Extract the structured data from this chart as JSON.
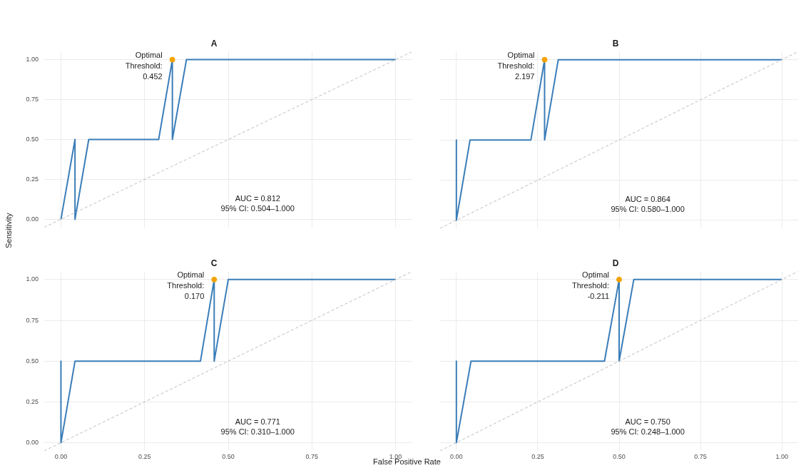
{
  "chart_data": [
    {
      "type": "line",
      "title": "A",
      "ylabel": "Sensitivity",
      "xlim": [
        -0.05,
        1.05
      ],
      "ylim": [
        -0.05,
        1.05
      ],
      "xticks": [
        0,
        0.25,
        0.5,
        0.75,
        1
      ],
      "yticks": [
        {
          "value": 0,
          "label": "0.00"
        },
        {
          "value": 0.25,
          "label": "0.25"
        },
        {
          "value": 0.5,
          "label": "0.50"
        },
        {
          "value": 0.75,
          "label": "0.75"
        },
        {
          "value": 1,
          "label": "1.00"
        }
      ],
      "grid": true,
      "tick_labels": "y",
      "series": [
        {
          "type": "line",
          "color": "#bdbdbd",
          "line_style": "dashed",
          "x": [
            -0.05,
            1.05
          ],
          "values": [
            -0.05,
            1.05
          ]
        },
        {
          "type": "line",
          "color": "#3a7db8",
          "x": [
            0,
            0.042,
            0.042,
            0.083,
            0.292,
            0.333,
            0.333,
            0.375,
            1
          ],
          "values": [
            0,
            0.5,
            0,
            0.5,
            0.5,
            1,
            0.5,
            1,
            1
          ]
        },
        {
          "type": "scatter",
          "color": "#f5a300",
          "marker": "circle",
          "x": [
            0.333
          ],
          "values": [
            1
          ]
        }
      ],
      "annotations": [
        {
          "text": "Optimal\nThreshold:\n0.452",
          "x": 0.333,
          "y": 1
        },
        "AUC = 0.812\n95% CI: 0.504–1.000"
      ]
    },
    {
      "type": "line",
      "title": "B",
      "xlim": [
        -0.05,
        1.05
      ],
      "ylim": [
        -0.05,
        1.05
      ],
      "xticks": [
        0,
        0.25,
        0.5,
        0.75,
        1
      ],
      "yticks": [
        0,
        0.25,
        0.5,
        0.75,
        1
      ],
      "grid": true,
      "tick_labels": false,
      "series": [
        {
          "type": "line",
          "color": "#bdbdbd",
          "line_style": "dashed",
          "x": [
            -0.05,
            1.05
          ],
          "values": [
            -0.05,
            1.05
          ]
        },
        {
          "type": "line",
          "color": "#3a7db8",
          "x": [
            0,
            0,
            0.042,
            0.229,
            0.271,
            0.271,
            0.313,
            1
          ],
          "values": [
            0.5,
            0,
            0.5,
            0.5,
            1,
            0.5,
            1,
            1
          ]
        },
        {
          "type": "scatter",
          "color": "#f5a300",
          "marker": "circle",
          "x": [
            0.271
          ],
          "values": [
            1
          ]
        }
      ],
      "annotations": [
        {
          "text": "Optimal\nThreshold:\n2.197",
          "x": 0.271,
          "y": 1
        },
        "AUC = 0.864\n95% CI: 0.580–1.000"
      ]
    },
    {
      "type": "line",
      "title": "C",
      "xlabel": "False Positive Rate",
      "xlim": [
        -0.05,
        1.05
      ],
      "ylim": [
        -0.05,
        1.05
      ],
      "xticks": [
        {
          "value": 0,
          "label": "0.00"
        },
        {
          "value": 0.25,
          "label": "0.25"
        },
        {
          "value": 0.5,
          "label": "0.50"
        },
        {
          "value": 0.75,
          "label": "0.75"
        },
        {
          "value": 1,
          "label": "1.00"
        }
      ],
      "yticks": [
        {
          "value": 0,
          "label": "0.00"
        },
        {
          "value": 0.25,
          "label": "0.25"
        },
        {
          "value": 0.5,
          "label": "0.50"
        },
        {
          "value": 0.75,
          "label": "0.75"
        },
        {
          "value": 1,
          "label": "1.00"
        }
      ],
      "grid": true,
      "series": [
        {
          "type": "line",
          "color": "#bdbdbd",
          "line_style": "dashed",
          "x": [
            -0.05,
            1.05
          ],
          "values": [
            -0.05,
            1.05
          ]
        },
        {
          "type": "line",
          "color": "#3a7db8",
          "x": [
            0,
            0,
            0.042,
            0.417,
            0.458,
            0.458,
            0.5,
            1
          ],
          "values": [
            0.5,
            0,
            0.5,
            0.5,
            1,
            0.5,
            1,
            1
          ]
        },
        {
          "type": "scatter",
          "color": "#f5a300",
          "marker": "circle",
          "x": [
            0.458
          ],
          "values": [
            1
          ]
        }
      ],
      "annotations": [
        {
          "text": "Optimal\nThreshold:\n0.170",
          "x": 0.458,
          "y": 1
        },
        "AUC = 0.771\n95% CI: 0.310–1.000"
      ]
    },
    {
      "type": "line",
      "title": "D",
      "xlim": [
        -0.05,
        1.05
      ],
      "ylim": [
        -0.05,
        1.05
      ],
      "xticks": [
        {
          "value": 0,
          "label": "0.00"
        },
        {
          "value": 0.25,
          "label": "0.25"
        },
        {
          "value": 0.5,
          "label": "0.50"
        },
        {
          "value": 0.75,
          "label": "0.75"
        },
        {
          "value": 1,
          "label": "1.00"
        }
      ],
      "yticks": [
        0,
        0.25,
        0.5,
        0.75,
        1
      ],
      "grid": true,
      "tick_labels": "x",
      "series": [
        {
          "type": "line",
          "color": "#bdbdbd",
          "line_style": "dashed",
          "x": [
            -0.05,
            1.05
          ],
          "values": [
            -0.05,
            1.05
          ]
        },
        {
          "type": "line",
          "color": "#3a7db8",
          "x": [
            0,
            0,
            0.045,
            0.455,
            0.5,
            0.5,
            0.545,
            1
          ],
          "values": [
            0.5,
            0,
            0.5,
            0.5,
            1,
            0.5,
            1,
            1
          ]
        },
        {
          "type": "scatter",
          "color": "#f5a300",
          "marker": "circle",
          "x": [
            0.5
          ],
          "values": [
            1
          ]
        }
      ],
      "annotations": [
        {
          "text": "Optimal\nThreshold:\n-0.211",
          "x": 0.5,
          "y": 1
        },
        "AUC = 0.750\n95% CI: 0.248–1.000"
      ]
    }
  ]
}
